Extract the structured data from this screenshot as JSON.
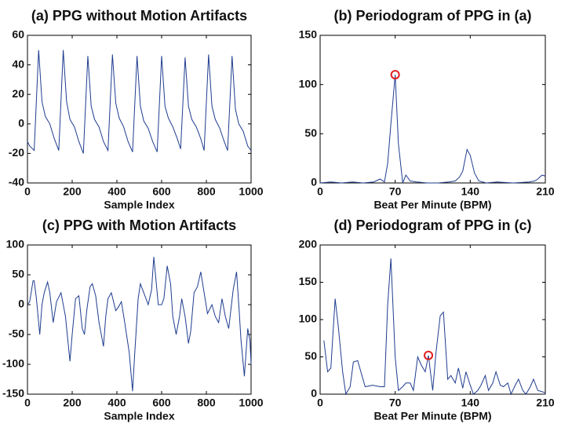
{
  "chart_data": [
    {
      "type": "line",
      "title": "(a) PPG without Motion Artifacts",
      "xlabel": "Sample Index",
      "color": "#1f3c8f",
      "xlim": [
        0,
        1000
      ],
      "ylim": [
        -40,
        60
      ],
      "xticks": [
        0,
        200,
        400,
        600,
        800,
        1000
      ],
      "yticks": [
        -40,
        -20,
        0,
        20,
        40,
        60
      ],
      "x": [
        0,
        10,
        30,
        50,
        65,
        80,
        100,
        120,
        140,
        160,
        175,
        190,
        210,
        230,
        250,
        270,
        285,
        300,
        320,
        340,
        360,
        380,
        395,
        410,
        430,
        450,
        470,
        490,
        505,
        520,
        540,
        560,
        580,
        600,
        615,
        630,
        650,
        670,
        685,
        705,
        720,
        735,
        755,
        775,
        790,
        810,
        825,
        840,
        860,
        880,
        895,
        915,
        930,
        945,
        965,
        985,
        1000
      ],
      "values": [
        -12,
        -15,
        -18,
        50,
        15,
        5,
        0,
        -10,
        -18,
        50,
        15,
        3,
        -2,
        -12,
        -20,
        46,
        12,
        3,
        -2,
        -12,
        -18,
        47,
        14,
        4,
        -2,
        -12,
        -19,
        46,
        12,
        2,
        -3,
        -12,
        -19,
        46,
        12,
        4,
        -2,
        -10,
        -17,
        45,
        12,
        3,
        -2,
        -10,
        -18,
        47,
        12,
        3,
        -3,
        -12,
        -18,
        46,
        10,
        0,
        -5,
        -15,
        -18
      ]
    },
    {
      "type": "line",
      "title": "(b) Periodogram of PPG in (a)",
      "xlabel": "Beat Per Minute (BPM)",
      "color": "#1f3c8f",
      "xlim": [
        0,
        210
      ],
      "ylim": [
        0,
        150
      ],
      "xticks": [
        0,
        70,
        140,
        210
      ],
      "yticks": [
        0,
        50,
        100,
        150
      ],
      "x": [
        0,
        10,
        20,
        30,
        40,
        50,
        56,
        60,
        63,
        66,
        70,
        73,
        77,
        80,
        84,
        90,
        100,
        110,
        120,
        126,
        130,
        133,
        137,
        140,
        144,
        148,
        155,
        165,
        180,
        195,
        200,
        203,
        207,
        210
      ],
      "values": [
        0,
        1,
        0,
        1,
        0,
        1,
        4,
        1,
        20,
        60,
        110,
        40,
        0,
        8,
        2,
        1,
        0,
        0,
        1,
        2,
        6,
        12,
        34,
        28,
        10,
        2,
        0,
        1,
        0,
        1,
        2,
        4,
        8,
        7
      ],
      "marker": {
        "x": 70,
        "y": 110,
        "color": "#e02020"
      }
    },
    {
      "type": "line",
      "title": "(c) PPG with Motion Artifacts",
      "xlabel": "Sample Index",
      "color": "#1f3c8f",
      "xlim": [
        0,
        1000
      ],
      "ylim": [
        -150,
        100
      ],
      "xticks": [
        0,
        200,
        400,
        600,
        800,
        1000
      ],
      "yticks": [
        -150,
        -100,
        -50,
        0,
        50,
        100
      ],
      "x": [
        0,
        10,
        25,
        30,
        40,
        55,
        65,
        75,
        90,
        100,
        115,
        130,
        150,
        170,
        190,
        200,
        215,
        230,
        245,
        255,
        265,
        280,
        290,
        305,
        320,
        340,
        350,
        360,
        375,
        395,
        405,
        420,
        435,
        455,
        470,
        480,
        495,
        505,
        520,
        540,
        555,
        565,
        575,
        585,
        600,
        610,
        625,
        640,
        650,
        665,
        680,
        690,
        705,
        720,
        730,
        745,
        760,
        775,
        790,
        805,
        825,
        840,
        855,
        870,
        885,
        900,
        920,
        935,
        945,
        955,
        970,
        985,
        995,
        1000
      ],
      "values": [
        0,
        5,
        40,
        40,
        10,
        -50,
        0,
        20,
        38,
        20,
        -30,
        5,
        20,
        -20,
        -95,
        -50,
        10,
        15,
        -40,
        -50,
        -10,
        30,
        35,
        15,
        -30,
        -70,
        -20,
        10,
        20,
        -10,
        -5,
        5,
        -30,
        -80,
        -145,
        -80,
        10,
        35,
        20,
        0,
        25,
        80,
        40,
        0,
        0,
        10,
        65,
        35,
        -20,
        -50,
        -20,
        10,
        -20,
        -65,
        -45,
        20,
        30,
        55,
        20,
        -15,
        0,
        -20,
        -30,
        10,
        -20,
        -40,
        25,
        55,
        0,
        -60,
        -120,
        -40,
        -60,
        -100
      ]
    },
    {
      "type": "line",
      "title": "(d) Periodogram of PPG in (c)",
      "xlabel": "Beat Per Minute (BPM)",
      "color": "#1f3c8f",
      "xlim": [
        0,
        210
      ],
      "ylim": [
        0,
        200
      ],
      "xticks": [
        0,
        70,
        140,
        210
      ],
      "yticks": [
        0,
        50,
        100,
        150,
        200
      ],
      "x": [
        3.5,
        7,
        10,
        14,
        17,
        21,
        24,
        28,
        31,
        35,
        38,
        42,
        49,
        56,
        60,
        63,
        66,
        70,
        73,
        77,
        80,
        84,
        87,
        91,
        94,
        98,
        101,
        105,
        108,
        112,
        115,
        119,
        122,
        126,
        129,
        133,
        136,
        140,
        143,
        147,
        150,
        154,
        157,
        161,
        164,
        168,
        171,
        175,
        178,
        182,
        185,
        189,
        192,
        196,
        199,
        203,
        210
      ],
      "values": [
        72,
        30,
        35,
        128,
        90,
        30,
        0,
        10,
        43,
        45,
        30,
        10,
        12,
        10,
        10,
        120,
        182,
        50,
        5,
        10,
        15,
        15,
        5,
        50,
        40,
        30,
        52,
        5,
        55,
        105,
        110,
        20,
        25,
        15,
        35,
        8,
        30,
        12,
        0,
        5,
        12,
        25,
        5,
        15,
        30,
        12,
        10,
        15,
        0,
        12,
        20,
        5,
        0,
        10,
        20,
        5,
        2
      ],
      "marker": {
        "x": 101,
        "y": 52,
        "color": "#e02020"
      }
    }
  ]
}
